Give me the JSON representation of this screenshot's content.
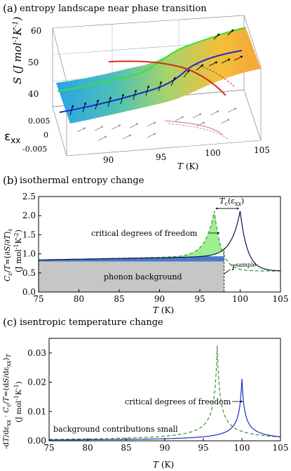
{
  "panels": {
    "a": {
      "letter": "(a)",
      "title": "entropy landscape near phase transition"
    },
    "b": {
      "letter": "(b)",
      "title": "isothermal entropy change"
    },
    "c": {
      "letter": "(c)",
      "title": "isentropic temperature change"
    }
  },
  "chart_data": [
    {
      "type": "surface",
      "panel": "a",
      "zlabel": "S (J mol-1K-1)",
      "ylabel": "εxx",
      "xlabel": "T (K)",
      "x_ticks": [
        "90",
        "95",
        "100",
        "105"
      ],
      "y_ticks": [
        "0.005",
        "0",
        "-0.005"
      ],
      "z_ticks": [
        "40",
        "50",
        "60"
      ],
      "xlim": [
        87,
        105
      ],
      "ylim": [
        -0.005,
        0.005
      ],
      "zlim": [
        38,
        63
      ],
      "colormap": [
        "#2aa3e8",
        "#4fc2b4",
        "#a8d36a",
        "#f3bf3a",
        "#f6a53a"
      ],
      "lines": [
        {
          "color": "#35e23a",
          "desc": "strain line"
        },
        {
          "color": "#1b2fc6",
          "desc": "strain line"
        },
        {
          "color": "#d62a1a",
          "desc": "transition line"
        }
      ]
    },
    {
      "type": "area",
      "panel": "b",
      "xlabel": "T (K)",
      "ylabel": "Cε/T=(∂S/∂T)ε (J mol-1K-2)",
      "xlim": [
        75,
        105
      ],
      "ylim": [
        0,
        2.5
      ],
      "x_ticks": [
        75,
        80,
        85,
        90,
        95,
        100,
        105
      ],
      "y_ticks": [
        0.0,
        0.5,
        1.0,
        1.5,
        2.0,
        2.5
      ],
      "annotations": {
        "critical": "critical degrees of freedom",
        "phonon": "phonon background",
        "tsample": "T sample",
        "tc": "Tc(εxx)"
      },
      "series": [
        {
          "style": "green-dashed",
          "Tc": 96.8,
          "peak": 2.12,
          "background": [
            0.84,
            0.935
          ]
        },
        {
          "style": "navy-solid",
          "Tc": 100.0,
          "peak": 2.12,
          "background": [
            0.84,
            0.935
          ]
        }
      ],
      "phonon_background": 0.8,
      "t_sample": 98.0
    },
    {
      "type": "line",
      "panel": "c",
      "xlabel": "T (K)",
      "ylabel": "-dT/dεxx · Cε/T=(dS/dεxx)T (J mol-1K-1)",
      "xlim": [
        75,
        105
      ],
      "ylim": [
        0,
        0.035
      ],
      "x_ticks": [
        75,
        80,
        85,
        90,
        95,
        100,
        105
      ],
      "y_ticks": [
        0.0,
        0.01,
        0.02,
        0.03
      ],
      "annotations": {
        "critical": "critical degrees of freedom",
        "background": "background contributions small"
      },
      "series": [
        {
          "style": "green-dashed",
          "Tc": 96.8,
          "peak": 0.0325
        },
        {
          "style": "blue-solid",
          "Tc": 100.0,
          "peak": 0.0212
        }
      ]
    }
  ]
}
